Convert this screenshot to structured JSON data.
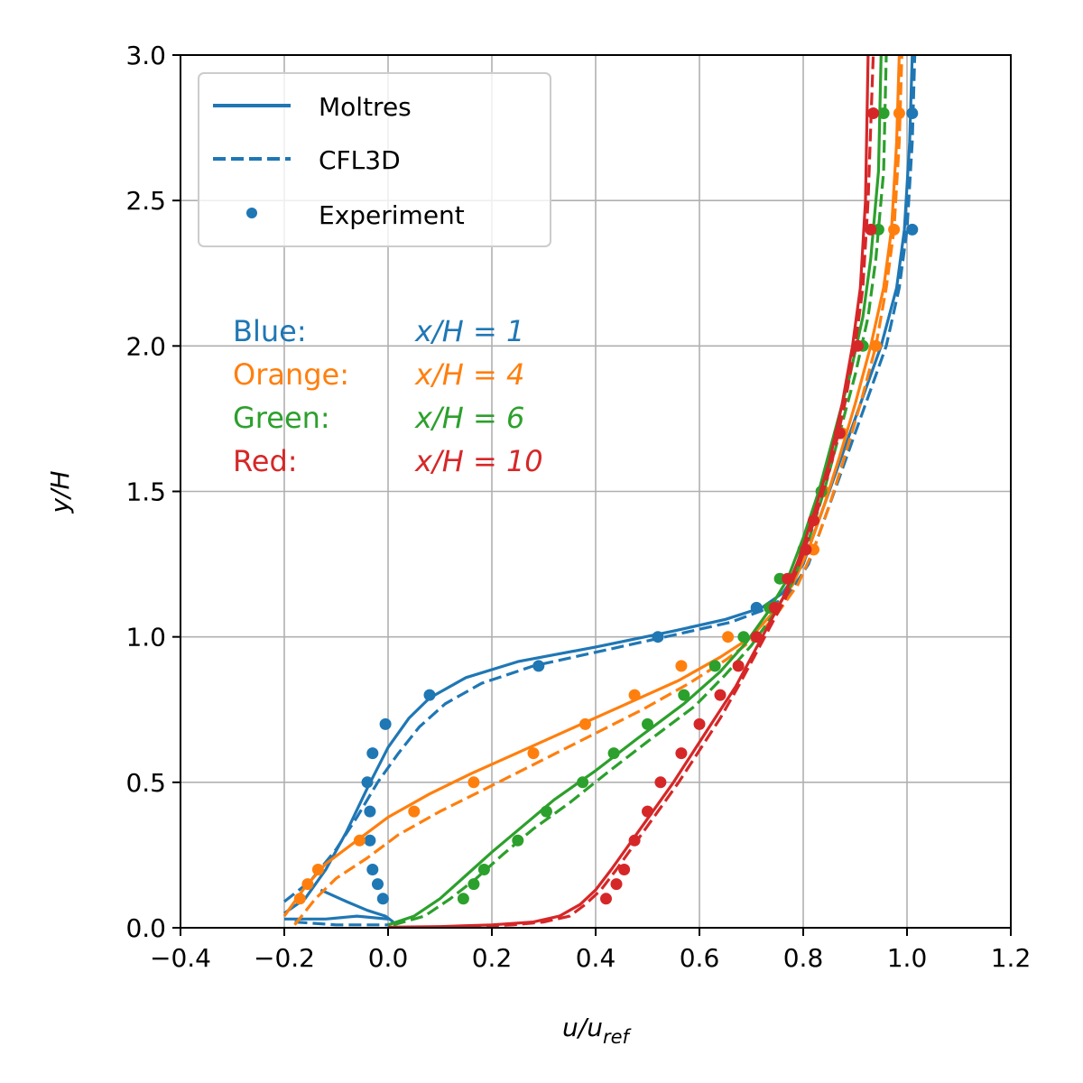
{
  "chart_data": {
    "type": "line",
    "xlabel_main": "u/u",
    "xlabel_sub": "ref",
    "ylabel": "y/H",
    "xlim": [
      -0.4,
      1.2
    ],
    "ylim": [
      0.0,
      3.0
    ],
    "xticks": [
      -0.4,
      -0.2,
      0.0,
      0.2,
      0.4,
      0.6,
      0.8,
      1.0,
      1.2
    ],
    "xtick_labels": [
      "−0.4",
      "−0.2",
      "0.0",
      "0.2",
      "0.4",
      "0.6",
      "0.8",
      "1.0",
      "1.2"
    ],
    "yticks": [
      0.0,
      0.5,
      1.0,
      1.5,
      2.0,
      2.5,
      3.0
    ],
    "ytick_labels": [
      "0.0",
      "0.5",
      "1.0",
      "1.5",
      "2.0",
      "2.5",
      "3.0"
    ],
    "grid": true,
    "legend": {
      "placement": "top-left",
      "entries": [
        {
          "label": "Moltres",
          "style": "solid"
        },
        {
          "label": "CFL3D",
          "style": "dashed"
        },
        {
          "label": "Experiment",
          "style": "marker"
        }
      ]
    },
    "annotations": [
      {
        "name": "Blue:",
        "value": "x/H = 1",
        "color": "#1f77b4"
      },
      {
        "name": "Orange:",
        "value": "x/H = 4",
        "color": "#ff7f0e"
      },
      {
        "name": "Green:",
        "value": "x/H = 6",
        "color": "#2ca02c"
      },
      {
        "name": "Red:",
        "value": "x/H = 10",
        "color": "#d62728"
      }
    ],
    "series": [
      {
        "color": "#1f77b4",
        "moltres": [
          [
            -0.2,
            0.05
          ],
          [
            -0.16,
            0.1
          ],
          [
            -0.12,
            0.2
          ],
          [
            -0.08,
            0.33
          ],
          [
            -0.04,
            0.48
          ],
          [
            0.0,
            0.62
          ],
          [
            0.04,
            0.72
          ],
          [
            0.08,
            0.79
          ],
          [
            0.15,
            0.86
          ],
          [
            0.25,
            0.915
          ],
          [
            0.4,
            0.965
          ],
          [
            0.55,
            1.02
          ],
          [
            0.65,
            1.06
          ],
          [
            0.72,
            1.1
          ],
          [
            0.76,
            1.15
          ],
          [
            0.8,
            1.25
          ],
          [
            0.83,
            1.4
          ],
          [
            0.86,
            1.55
          ],
          [
            0.89,
            1.7
          ],
          [
            0.92,
            1.85
          ],
          [
            0.95,
            2.0
          ],
          [
            0.98,
            2.2
          ],
          [
            0.995,
            2.4
          ],
          [
            1.005,
            2.7
          ],
          [
            1.01,
            3.0
          ]
        ],
        "moltres_recirc": [
          [
            -0.2,
            0.03
          ],
          [
            -0.12,
            0.03
          ],
          [
            -0.06,
            0.04
          ],
          [
            0.0,
            0.03
          ]
        ],
        "moltres_loop": [
          [
            -0.13,
            0.13
          ],
          [
            -0.08,
            0.09
          ],
          [
            -0.04,
            0.06
          ],
          [
            -0.005,
            0.04
          ],
          [
            0.01,
            0.02
          ]
        ],
        "cfl3d": [
          [
            -0.2,
            0.09
          ],
          [
            -0.15,
            0.16
          ],
          [
            -0.1,
            0.27
          ],
          [
            -0.06,
            0.38
          ],
          [
            -0.02,
            0.5
          ],
          [
            0.02,
            0.6
          ],
          [
            0.06,
            0.69
          ],
          [
            0.11,
            0.77
          ],
          [
            0.18,
            0.84
          ],
          [
            0.28,
            0.9
          ],
          [
            0.42,
            0.955
          ],
          [
            0.56,
            1.01
          ],
          [
            0.66,
            1.05
          ],
          [
            0.72,
            1.09
          ],
          [
            0.77,
            1.14
          ],
          [
            0.81,
            1.25
          ],
          [
            0.84,
            1.4
          ],
          [
            0.87,
            1.55
          ],
          [
            0.9,
            1.7
          ],
          [
            0.93,
            1.85
          ],
          [
            0.96,
            2.0
          ],
          [
            0.985,
            2.2
          ],
          [
            1.0,
            2.4
          ],
          [
            1.01,
            2.7
          ],
          [
            1.015,
            3.0
          ]
        ],
        "cfl3d_recirc": [
          [
            -0.18,
            0.02
          ],
          [
            -0.1,
            0.01
          ],
          [
            0.0,
            0.01
          ]
        ],
        "experiment": [
          [
            -0.01,
            0.1
          ],
          [
            -0.02,
            0.15
          ],
          [
            -0.03,
            0.2
          ],
          [
            -0.035,
            0.3
          ],
          [
            -0.035,
            0.4
          ],
          [
            -0.04,
            0.5
          ],
          [
            -0.03,
            0.6
          ],
          [
            -0.005,
            0.7
          ],
          [
            0.08,
            0.8
          ],
          [
            0.29,
            0.9
          ],
          [
            0.52,
            1.0
          ],
          [
            0.71,
            1.1
          ],
          [
            1.01,
            2.4
          ],
          [
            1.01,
            2.8
          ]
        ]
      },
      {
        "color": "#ff7f0e",
        "moltres": [
          [
            -0.2,
            0.04
          ],
          [
            -0.16,
            0.14
          ],
          [
            -0.12,
            0.22
          ],
          [
            -0.06,
            0.3
          ],
          [
            0.0,
            0.38
          ],
          [
            0.08,
            0.46
          ],
          [
            0.16,
            0.53
          ],
          [
            0.26,
            0.61
          ],
          [
            0.36,
            0.69
          ],
          [
            0.46,
            0.77
          ],
          [
            0.56,
            0.85
          ],
          [
            0.64,
            0.93
          ],
          [
            0.7,
            1.0
          ],
          [
            0.74,
            1.08
          ],
          [
            0.78,
            1.18
          ],
          [
            0.81,
            1.3
          ],
          [
            0.84,
            1.45
          ],
          [
            0.87,
            1.62
          ],
          [
            0.9,
            1.8
          ],
          [
            0.93,
            2.0
          ],
          [
            0.955,
            2.2
          ],
          [
            0.97,
            2.4
          ],
          [
            0.98,
            2.7
          ],
          [
            0.985,
            3.0
          ]
        ],
        "cfl3d": [
          [
            -0.18,
            0.01
          ],
          [
            -0.14,
            0.1
          ],
          [
            -0.1,
            0.17
          ],
          [
            -0.04,
            0.24
          ],
          [
            0.02,
            0.32
          ],
          [
            0.1,
            0.4
          ],
          [
            0.19,
            0.48
          ],
          [
            0.29,
            0.57
          ],
          [
            0.39,
            0.66
          ],
          [
            0.49,
            0.75
          ],
          [
            0.58,
            0.84
          ],
          [
            0.65,
            0.92
          ],
          [
            0.71,
            1.0
          ],
          [
            0.75,
            1.08
          ],
          [
            0.79,
            1.18
          ],
          [
            0.82,
            1.3
          ],
          [
            0.85,
            1.45
          ],
          [
            0.88,
            1.62
          ],
          [
            0.91,
            1.8
          ],
          [
            0.94,
            2.0
          ],
          [
            0.96,
            2.2
          ],
          [
            0.975,
            2.4
          ],
          [
            0.985,
            2.7
          ],
          [
            0.99,
            3.0
          ]
        ],
        "experiment": [
          [
            -0.17,
            0.1
          ],
          [
            -0.155,
            0.15
          ],
          [
            -0.135,
            0.2
          ],
          [
            -0.055,
            0.3
          ],
          [
            0.05,
            0.4
          ],
          [
            0.165,
            0.5
          ],
          [
            0.28,
            0.6
          ],
          [
            0.38,
            0.7
          ],
          [
            0.475,
            0.8
          ],
          [
            0.565,
            0.9
          ],
          [
            0.655,
            1.0
          ],
          [
            0.745,
            1.1
          ],
          [
            0.775,
            1.2
          ],
          [
            0.82,
            1.3
          ],
          [
            0.84,
            1.5
          ],
          [
            0.875,
            1.7
          ],
          [
            0.94,
            2.0
          ],
          [
            0.975,
            2.4
          ],
          [
            0.985,
            2.8
          ]
        ]
      },
      {
        "color": "#2ca02c",
        "moltres": [
          [
            0.0,
            0.01
          ],
          [
            0.05,
            0.04
          ],
          [
            0.1,
            0.1
          ],
          [
            0.15,
            0.18
          ],
          [
            0.2,
            0.26
          ],
          [
            0.26,
            0.35
          ],
          [
            0.32,
            0.44
          ],
          [
            0.4,
            0.54
          ],
          [
            0.48,
            0.65
          ],
          [
            0.57,
            0.77
          ],
          [
            0.64,
            0.88
          ],
          [
            0.69,
            0.98
          ],
          [
            0.73,
            1.08
          ],
          [
            0.77,
            1.2
          ],
          [
            0.8,
            1.34
          ],
          [
            0.83,
            1.5
          ],
          [
            0.86,
            1.7
          ],
          [
            0.89,
            1.9
          ],
          [
            0.915,
            2.1
          ],
          [
            0.93,
            2.3
          ],
          [
            0.945,
            2.6
          ],
          [
            0.95,
            3.0
          ]
        ],
        "cfl3d": [
          [
            0.01,
            0.01
          ],
          [
            0.07,
            0.04
          ],
          [
            0.12,
            0.1
          ],
          [
            0.17,
            0.17
          ],
          [
            0.22,
            0.25
          ],
          [
            0.28,
            0.34
          ],
          [
            0.35,
            0.43
          ],
          [
            0.42,
            0.53
          ],
          [
            0.5,
            0.64
          ],
          [
            0.59,
            0.76
          ],
          [
            0.65,
            0.87
          ],
          [
            0.7,
            0.97
          ],
          [
            0.74,
            1.07
          ],
          [
            0.78,
            1.19
          ],
          [
            0.81,
            1.33
          ],
          [
            0.84,
            1.5
          ],
          [
            0.87,
            1.7
          ],
          [
            0.9,
            1.9
          ],
          [
            0.925,
            2.1
          ],
          [
            0.94,
            2.3
          ],
          [
            0.955,
            2.6
          ],
          [
            0.96,
            3.0
          ]
        ],
        "experiment": [
          [
            0.145,
            0.1
          ],
          [
            0.165,
            0.15
          ],
          [
            0.185,
            0.2
          ],
          [
            0.25,
            0.3
          ],
          [
            0.305,
            0.4
          ],
          [
            0.375,
            0.5
          ],
          [
            0.435,
            0.6
          ],
          [
            0.5,
            0.7
          ],
          [
            0.57,
            0.8
          ],
          [
            0.63,
            0.9
          ],
          [
            0.685,
            1.0
          ],
          [
            0.735,
            1.1
          ],
          [
            0.755,
            1.2
          ],
          [
            0.8,
            1.3
          ],
          [
            0.835,
            1.5
          ],
          [
            0.87,
            1.7
          ],
          [
            0.915,
            2.0
          ],
          [
            0.945,
            2.4
          ],
          [
            0.955,
            2.8
          ]
        ]
      },
      {
        "color": "#d62728",
        "moltres": [
          [
            0.0,
            0.002
          ],
          [
            0.1,
            0.004
          ],
          [
            0.2,
            0.01
          ],
          [
            0.28,
            0.02
          ],
          [
            0.33,
            0.04
          ],
          [
            0.37,
            0.08
          ],
          [
            0.4,
            0.13
          ],
          [
            0.43,
            0.2
          ],
          [
            0.47,
            0.3
          ],
          [
            0.51,
            0.4
          ],
          [
            0.55,
            0.5
          ],
          [
            0.59,
            0.61
          ],
          [
            0.63,
            0.72
          ],
          [
            0.67,
            0.83
          ],
          [
            0.7,
            0.93
          ],
          [
            0.73,
            1.03
          ],
          [
            0.76,
            1.13
          ],
          [
            0.79,
            1.26
          ],
          [
            0.82,
            1.42
          ],
          [
            0.85,
            1.6
          ],
          [
            0.875,
            1.8
          ],
          [
            0.895,
            2.0
          ],
          [
            0.91,
            2.2
          ],
          [
            0.92,
            2.5
          ],
          [
            0.925,
            3.0
          ]
        ],
        "cfl3d": [
          [
            0.05,
            0.002
          ],
          [
            0.15,
            0.004
          ],
          [
            0.24,
            0.01
          ],
          [
            0.3,
            0.02
          ],
          [
            0.35,
            0.04
          ],
          [
            0.38,
            0.08
          ],
          [
            0.41,
            0.13
          ],
          [
            0.44,
            0.2
          ],
          [
            0.48,
            0.3
          ],
          [
            0.52,
            0.4
          ],
          [
            0.56,
            0.5
          ],
          [
            0.6,
            0.61
          ],
          [
            0.64,
            0.72
          ],
          [
            0.675,
            0.83
          ],
          [
            0.705,
            0.93
          ],
          [
            0.735,
            1.03
          ],
          [
            0.765,
            1.13
          ],
          [
            0.795,
            1.26
          ],
          [
            0.825,
            1.42
          ],
          [
            0.855,
            1.6
          ],
          [
            0.88,
            1.8
          ],
          [
            0.9,
            2.0
          ],
          [
            0.915,
            2.2
          ],
          [
            0.925,
            2.5
          ],
          [
            0.935,
            3.0
          ]
        ],
        "experiment": [
          [
            0.42,
            0.1
          ],
          [
            0.44,
            0.15
          ],
          [
            0.455,
            0.2
          ],
          [
            0.475,
            0.3
          ],
          [
            0.5,
            0.4
          ],
          [
            0.525,
            0.5
          ],
          [
            0.565,
            0.6
          ],
          [
            0.6,
            0.7
          ],
          [
            0.64,
            0.8
          ],
          [
            0.675,
            0.9
          ],
          [
            0.71,
            1.0
          ],
          [
            0.745,
            1.1
          ],
          [
            0.77,
            1.2
          ],
          [
            0.805,
            1.3
          ],
          [
            0.82,
            1.4
          ],
          [
            0.87,
            1.7
          ],
          [
            0.905,
            2.0
          ],
          [
            0.93,
            2.4
          ],
          [
            0.935,
            2.8
          ]
        ]
      }
    ]
  }
}
